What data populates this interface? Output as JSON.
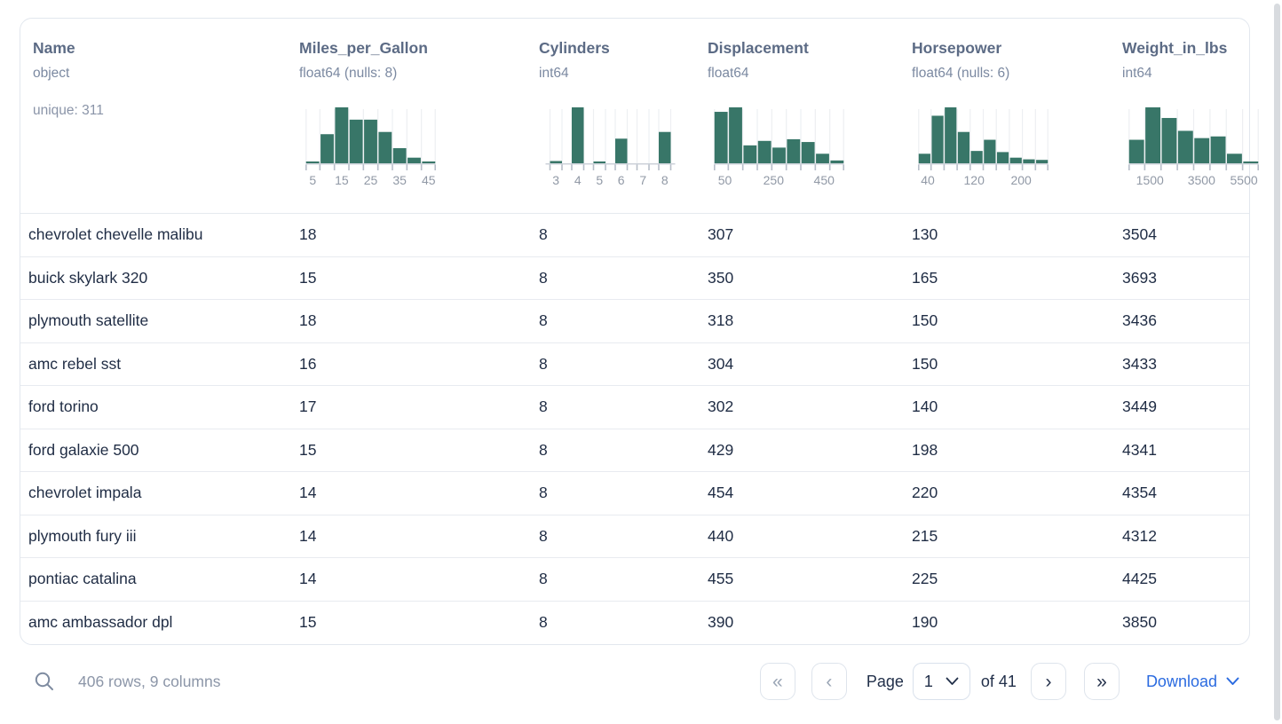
{
  "card": {
    "columns": [
      {
        "name": "Name",
        "dtype": "object",
        "extra": "unique: 311"
      },
      {
        "name": "Miles_per_Gallon",
        "dtype": "float64 (nulls: 8)",
        "hist": {
          "type": "bar",
          "gap_bars": false,
          "bars": [
            0.03,
            0.52,
            1,
            0.78,
            0.78,
            0.56,
            0.27,
            0.1,
            0.03
          ],
          "tick_labels": [
            {
              "t": "5",
              "f": 0.056
            },
            {
              "t": "15",
              "f": 0.278
            },
            {
              "t": "25",
              "f": 0.5
            },
            {
              "t": "35",
              "f": 0.722
            },
            {
              "t": "45",
              "f": 0.944
            }
          ]
        }
      },
      {
        "name": "Cylinders",
        "dtype": "int64",
        "hist": {
          "type": "bar",
          "gap_bars": true,
          "bars": [
            0.04,
            1,
            0.03,
            0.44,
            0,
            0.56
          ],
          "tick_labels": [
            {
              "t": "3",
              "f": 0.083
            },
            {
              "t": "4",
              "f": 0.25
            },
            {
              "t": "5",
              "f": 0.417
            },
            {
              "t": "6",
              "f": 0.583
            },
            {
              "t": "7",
              "f": 0.75
            },
            {
              "t": "8",
              "f": 0.917
            }
          ]
        }
      },
      {
        "name": "Displacement",
        "dtype": "float64",
        "hist": {
          "type": "bar",
          "gap_bars": false,
          "bars": [
            0.92,
            1,
            0.32,
            0.4,
            0.28,
            0.43,
            0.38,
            0.17,
            0.05
          ],
          "tick_labels": [
            {
              "t": "50",
              "f": 0.085
            },
            {
              "t": "250",
              "f": 0.458
            },
            {
              "t": "450",
              "f": 0.845
            }
          ]
        }
      },
      {
        "name": "Horsepower",
        "dtype": "float64 (nulls: 6)",
        "hist": {
          "type": "bar",
          "gap_bars": false,
          "bars": [
            0.17,
            0.85,
            1,
            0.56,
            0.22,
            0.42,
            0.2,
            0.1,
            0.07,
            0.06
          ],
          "tick_labels": [
            {
              "t": "40",
              "f": 0.075
            },
            {
              "t": "120",
              "f": 0.43
            },
            {
              "t": "200",
              "f": 0.79
            }
          ]
        }
      },
      {
        "name": "Weight_in_lbs",
        "dtype": "int64",
        "hist": {
          "type": "bar",
          "gap_bars": false,
          "bars": [
            0.42,
            1,
            0.81,
            0.58,
            0.45,
            0.48,
            0.17,
            0.02
          ],
          "tick_labels": [
            {
              "t": "1500",
              "f": 0.165
            },
            {
              "t": "3500",
              "f": 0.56
            },
            {
              "t": "5500",
              "f": 0.885
            }
          ]
        }
      }
    ],
    "rows": [
      [
        "chevrolet chevelle malibu",
        "18",
        "8",
        "307",
        "130",
        "3504"
      ],
      [
        "buick skylark 320",
        "15",
        "8",
        "350",
        "165",
        "3693"
      ],
      [
        "plymouth satellite",
        "18",
        "8",
        "318",
        "150",
        "3436"
      ],
      [
        "amc rebel sst",
        "16",
        "8",
        "304",
        "150",
        "3433"
      ],
      [
        "ford torino",
        "17",
        "8",
        "302",
        "140",
        "3449"
      ],
      [
        "ford galaxie 500",
        "15",
        "8",
        "429",
        "198",
        "4341"
      ],
      [
        "chevrolet impala",
        "14",
        "8",
        "454",
        "220",
        "4354"
      ],
      [
        "plymouth fury iii",
        "14",
        "8",
        "440",
        "215",
        "4312"
      ],
      [
        "pontiac catalina",
        "14",
        "8",
        "455",
        "225",
        "4425"
      ],
      [
        "amc ambassador dpl",
        "15",
        "8",
        "390",
        "190",
        "3850"
      ]
    ]
  },
  "footer": {
    "summary": "406 rows, 9 columns",
    "search_icon": "magnifier",
    "pagination": {
      "first_icon": "«",
      "prev_icon": "‹",
      "next_icon": "›",
      "last_icon": "»",
      "page_label": "Page",
      "page_value": "1",
      "total_label": "of 41"
    },
    "download_label": "Download"
  },
  "colors": {
    "hist_bar": "#387668",
    "hist_grid": "#edeff2",
    "hist_baseline": "#ccd2d9",
    "hist_tick": "#b7bec9",
    "hist_label": "#9199a6",
    "link_blue": "#2b6be0",
    "header_text": "#5c6b85",
    "row_text": "#1f2c44",
    "muted_text": "#8c96a8"
  }
}
